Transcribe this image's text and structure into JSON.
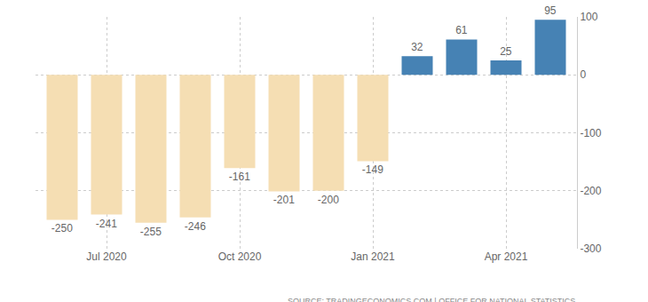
{
  "chart_data": {
    "type": "bar",
    "categories": [
      null,
      "Jul 2020",
      null,
      null,
      "Oct 2020",
      null,
      null,
      "Jan 2021",
      null,
      null,
      "Apr 2021",
      null
    ],
    "values": [
      -250,
      -241,
      -255,
      -246,
      -161,
      -201,
      -200,
      -149,
      32,
      61,
      25,
      95
    ],
    "colors": [
      "#f5deb3",
      "#f5deb3",
      "#f5deb3",
      "#f5deb3",
      "#f5deb3",
      "#f5deb3",
      "#f5deb3",
      "#f5deb3",
      "#4682b4",
      "#4682b4",
      "#4682b4",
      "#4682b4"
    ],
    "ylim": [
      -300,
      100
    ],
    "yticks": [
      -300,
      -200,
      -100,
      0,
      100
    ],
    "grid": true,
    "data_labels": true,
    "source": "SOURCE: TRADINGECONOMICS.COM | OFFICE FOR NATIONAL STATISTICS"
  }
}
